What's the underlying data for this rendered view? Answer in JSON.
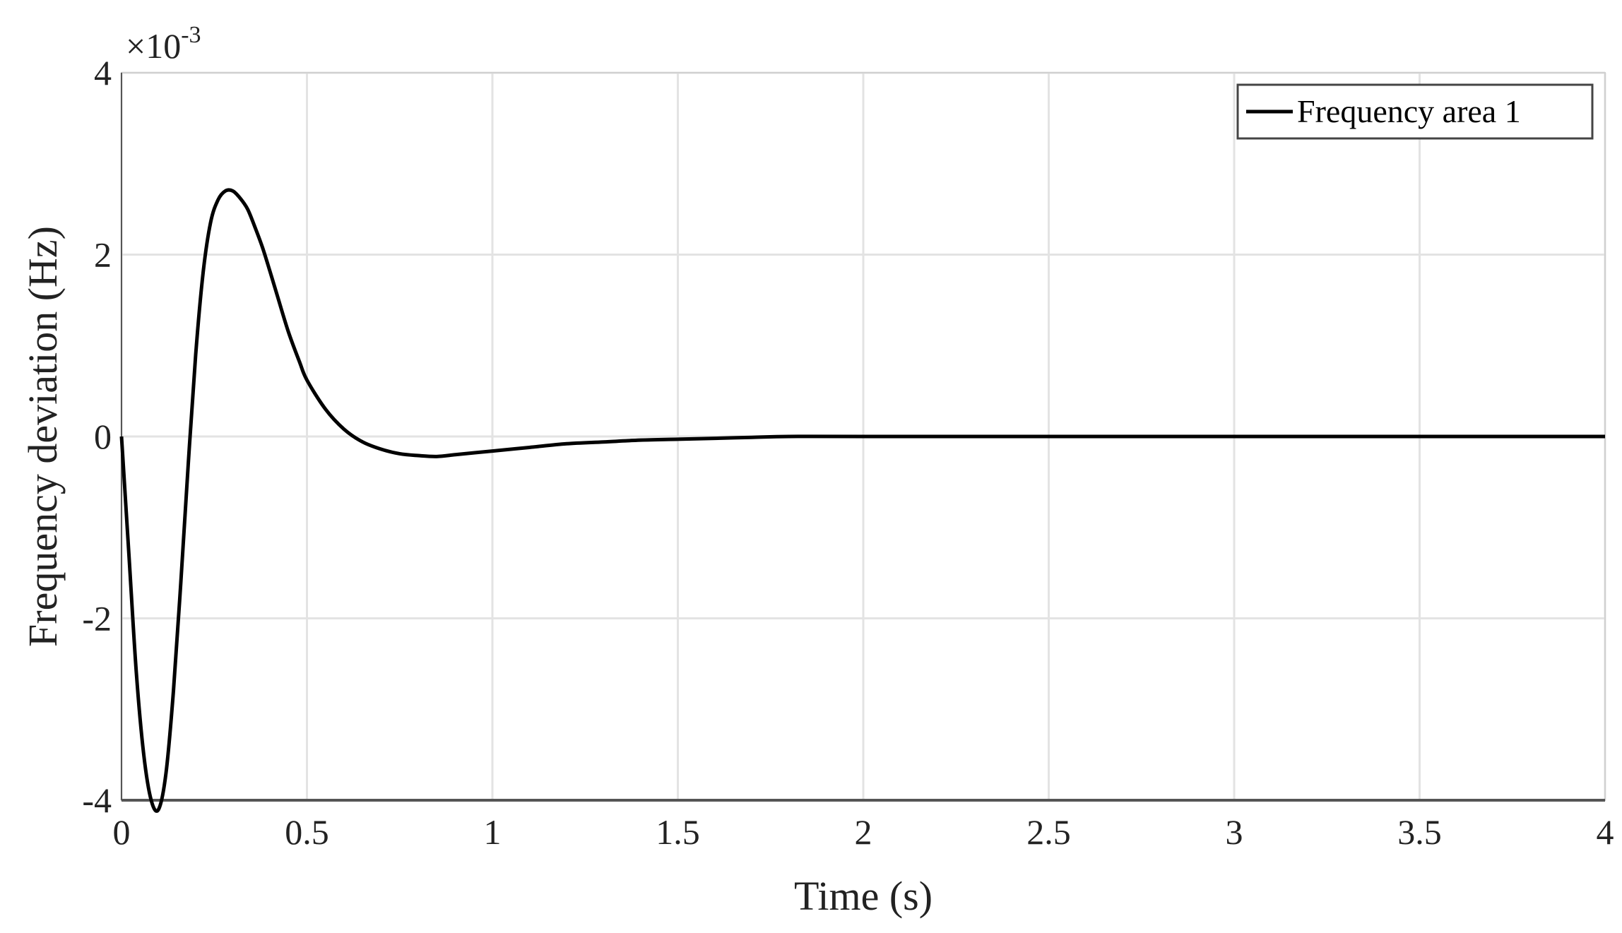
{
  "chart_data": {
    "type": "line",
    "title": "",
    "xlabel": "Time (s)",
    "ylabel": "Frequency deviation (Hz)",
    "y_exponent_base": "×10",
    "y_exponent_power": "-3",
    "xlim": [
      0,
      4
    ],
    "ylim": [
      -4,
      4
    ],
    "x_ticks": [
      0,
      0.5,
      1,
      1.5,
      2,
      2.5,
      3,
      3.5,
      4
    ],
    "x_tick_labels": [
      "0",
      "0.5",
      "1",
      "1.5",
      "2",
      "2.5",
      "3",
      "3.5",
      "4"
    ],
    "y_ticks": [
      -4,
      -2,
      0,
      2,
      4
    ],
    "y_tick_labels": [
      "-4",
      "-2",
      "0",
      "2",
      "4"
    ],
    "grid": true,
    "legend_position": "top-right",
    "line_color": "#000000",
    "grid_color": "#e3e3e3",
    "series": [
      {
        "name": "Frequency area 1",
        "x": [
          0,
          0.02,
          0.04,
          0.06,
          0.08,
          0.1,
          0.12,
          0.14,
          0.16,
          0.18,
          0.2,
          0.22,
          0.24,
          0.26,
          0.28,
          0.3,
          0.32,
          0.34,
          0.36,
          0.38,
          0.4,
          0.42,
          0.45,
          0.48,
          0.5,
          0.55,
          0.6,
          0.65,
          0.7,
          0.75,
          0.8,
          0.85,
          0.9,
          0.95,
          1.0,
          1.1,
          1.2,
          1.3,
          1.4,
          1.5,
          1.6,
          1.7,
          1.8,
          2.0,
          2.5,
          3.0,
          3.5,
          4.0
        ],
        "y": [
          0,
          -1.3,
          -2.6,
          -3.5,
          -4.0,
          -4.1,
          -3.7,
          -2.8,
          -1.6,
          -0.3,
          0.9,
          1.8,
          2.35,
          2.6,
          2.7,
          2.7,
          2.62,
          2.5,
          2.3,
          2.08,
          1.82,
          1.55,
          1.15,
          0.82,
          0.62,
          0.3,
          0.08,
          -0.06,
          -0.14,
          -0.19,
          -0.21,
          -0.22,
          -0.2,
          -0.18,
          -0.16,
          -0.12,
          -0.08,
          -0.06,
          -0.04,
          -0.03,
          -0.02,
          -0.01,
          0,
          0,
          0,
          0,
          0,
          0
        ]
      }
    ]
  }
}
